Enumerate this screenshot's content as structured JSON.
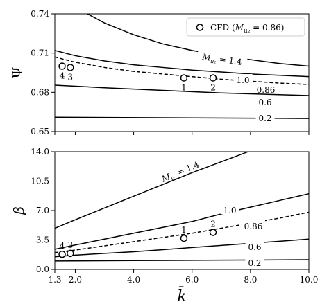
{
  "chart_data": [
    {
      "type": "line",
      "panel": "top",
      "ylabel": "Ψ",
      "xlim": [
        1.3,
        10.0
      ],
      "ylim": [
        0.65,
        0.74
      ],
      "yticks": [
        "0.65",
        "0.68",
        "0.71",
        "0.74"
      ],
      "grid": false,
      "legend": {
        "placement": "top-right",
        "entry": "CFD (M_u2 = 0.86)",
        "entry_text": "CFD (",
        "entry_sym": "M",
        "entry_sub": "u₂",
        "entry_tail": " = 0.86)"
      },
      "series": [
        {
          "name": "M_u2 = 1.4",
          "label": "M_u2 = 1.4",
          "dashed": false,
          "x": [
            1.3,
            2.0,
            3.0,
            4.0,
            5.0,
            6.0,
            7.0,
            8.0,
            9.0,
            10.0
          ],
          "y": [
            0.756,
            0.745,
            0.733,
            0.724,
            0.717,
            0.712,
            0.708,
            0.705,
            0.702,
            0.7
          ]
        },
        {
          "name": "1.0",
          "label": "1.0",
          "dashed": false,
          "x": [
            1.3,
            2.0,
            3.0,
            4.0,
            5.0,
            6.0,
            7.0,
            8.0,
            9.0,
            10.0
          ],
          "y": [
            0.712,
            0.708,
            0.704,
            0.701,
            0.699,
            0.697,
            0.6955,
            0.694,
            0.693,
            0.692
          ]
        },
        {
          "name": "0.86",
          "label": "0.86",
          "dashed": true,
          "x": [
            1.3,
            2.0,
            3.0,
            4.0,
            5.0,
            6.0,
            7.0,
            8.0,
            9.0,
            10.0
          ],
          "y": [
            0.707,
            0.703,
            0.699,
            0.696,
            0.694,
            0.692,
            0.69,
            0.6885,
            0.687,
            0.686
          ]
        },
        {
          "name": "0.6",
          "label": "0.6",
          "dashed": false,
          "x": [
            1.3,
            3.0,
            5.0,
            7.0,
            10.0
          ],
          "y": [
            0.6855,
            0.6835,
            0.6815,
            0.6795,
            0.6775
          ]
        },
        {
          "name": "0.2",
          "label": "0.2",
          "dashed": false,
          "x": [
            1.3,
            10.0
          ],
          "y": [
            0.661,
            0.66
          ]
        }
      ],
      "points": [
        {
          "label": "4",
          "x": 1.55,
          "y": 0.7
        },
        {
          "label": "3",
          "x": 1.83,
          "y": 0.699
        },
        {
          "label": "1",
          "x": 5.72,
          "y": 0.691
        },
        {
          "label": "2",
          "x": 6.72,
          "y": 0.691
        }
      ]
    },
    {
      "type": "line",
      "panel": "bottom",
      "ylabel": "β",
      "xlabel": "k̄",
      "xlim": [
        1.3,
        10.0
      ],
      "ylim": [
        0.0,
        14.0
      ],
      "xticks": [
        "1.3",
        "2.0",
        "4.0",
        "6.0",
        "8.0",
        "10.0"
      ],
      "xtick_values": [
        1.3,
        2.0,
        4.0,
        6.0,
        8.0,
        10.0
      ],
      "yticks": [
        "0.0",
        "3.5",
        "7.0",
        "10.5",
        "14.0"
      ],
      "grid": false,
      "series": [
        {
          "name": "M_u2 = 1.4",
          "label": "M_u2 = 1.4",
          "dashed": false,
          "x": [
            1.3,
            2.0,
            3.0,
            4.0,
            5.0,
            6.0,
            7.0,
            8.0,
            9.0,
            10.0
          ],
          "y": [
            4.9,
            5.9,
            7.3,
            8.7,
            10.1,
            11.5,
            12.8,
            14.1,
            15.4,
            16.6
          ]
        },
        {
          "name": "1.0",
          "label": "1.0",
          "dashed": false,
          "x": [
            1.3,
            2.0,
            3.0,
            4.0,
            5.0,
            6.0,
            7.0,
            8.0,
            9.0,
            10.0
          ],
          "y": [
            2.4,
            2.9,
            3.6,
            4.3,
            5.0,
            5.7,
            6.6,
            7.4,
            8.2,
            9.0
          ]
        },
        {
          "name": "0.86",
          "label": "0.86",
          "dashed": true,
          "x": [
            1.3,
            2.0,
            3.0,
            4.0,
            5.0,
            6.0,
            7.0,
            8.0,
            9.0,
            10.0
          ],
          "y": [
            2.0,
            2.3,
            2.8,
            3.3,
            3.8,
            4.3,
            4.9,
            5.5,
            6.1,
            6.8
          ]
        },
        {
          "name": "0.6",
          "label": "0.6",
          "dashed": false,
          "x": [
            1.3,
            2.0,
            3.0,
            4.0,
            5.0,
            6.0,
            7.0,
            8.0,
            9.0,
            10.0
          ],
          "y": [
            1.5,
            1.7,
            1.9,
            2.1,
            2.35,
            2.6,
            2.85,
            3.1,
            3.35,
            3.6
          ]
        },
        {
          "name": "0.2",
          "label": "0.2",
          "dashed": false,
          "x": [
            1.3,
            4.0,
            7.0,
            10.0
          ],
          "y": [
            1.0,
            1.05,
            1.1,
            1.15
          ]
        }
      ],
      "points": [
        {
          "label": "4",
          "x": 1.55,
          "y": 1.8
        },
        {
          "label": "3",
          "x": 1.83,
          "y": 1.9
        },
        {
          "label": "1",
          "x": 5.72,
          "y": 3.7
        },
        {
          "label": "2",
          "x": 6.72,
          "y": 4.4
        }
      ]
    }
  ]
}
